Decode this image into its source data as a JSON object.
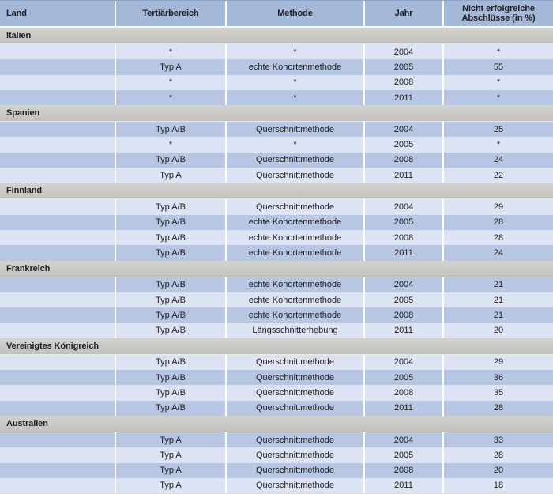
{
  "colors": {
    "header_bg": "#a4b8d8",
    "row_light": "#dce3f2",
    "row_dark": "#b7c6e2",
    "section_bg": "#c8c7c4",
    "grid_line": "#ffffff",
    "text": "#1e1e1e"
  },
  "chart_data": {
    "type": "table",
    "columns": [
      "Land",
      "Tertiärbereich",
      "Methode",
      "Jahr",
      "Nicht erfolgreiche Abschlüsse (in %)"
    ],
    "sections": [
      {
        "country": "Italien",
        "rows": [
          [
            "*",
            "*",
            "2004",
            "*"
          ],
          [
            "Typ A",
            "echte Kohortenmethode",
            "2005",
            "55"
          ],
          [
            "*",
            "*",
            "2008",
            "*"
          ],
          [
            "*",
            "*",
            "2011",
            "*"
          ]
        ]
      },
      {
        "country": "Spanien",
        "rows": [
          [
            "Typ A/B",
            "Querschnittmethode",
            "2004",
            "25"
          ],
          [
            "*",
            "*",
            "2005",
            "*"
          ],
          [
            "Typ A/B",
            "Querschnittmethode",
            "2008",
            "24"
          ],
          [
            "Typ A",
            "Querschnittmethode",
            "2011",
            "22"
          ]
        ]
      },
      {
        "country": "Finnland",
        "rows": [
          [
            "Typ A/B",
            "Querschnittmethode",
            "2004",
            "29"
          ],
          [
            "Typ A/B",
            "echte Kohortenmethode",
            "2005",
            "28"
          ],
          [
            "Typ A/B",
            "echte Kohortenmethode",
            "2008",
            "28"
          ],
          [
            "Typ A/B",
            "echte Kohortenmethode",
            "2011",
            "24"
          ]
        ]
      },
      {
        "country": "Frankreich",
        "rows": [
          [
            "Typ A/B",
            "echte Kohortenmethode",
            "2004",
            "21"
          ],
          [
            "Typ A/B",
            "echte Kohortenmethode",
            "2005",
            "21"
          ],
          [
            "Typ A/B",
            "echte Kohortenmethode",
            "2008",
            "21"
          ],
          [
            "Typ A/B",
            "Längsschnitterhebung",
            "2011",
            "20"
          ]
        ]
      },
      {
        "country": "Vereinigtes Königreich",
        "rows": [
          [
            "Typ A/B",
            "Querschnittmethode",
            "2004",
            "29"
          ],
          [
            "Typ A/B",
            "Querschnittmethode",
            "2005",
            "36"
          ],
          [
            "Typ A/B",
            "Querschnittmethode",
            "2008",
            "35"
          ],
          [
            "Typ A/B",
            "Querschnittmethode",
            "2011",
            "28"
          ]
        ]
      },
      {
        "country": "Australien",
        "rows": [
          [
            "Typ A",
            "Querschnittmethode",
            "2004",
            "33"
          ],
          [
            "Typ A",
            "Querschnittmethode",
            "2005",
            "28"
          ],
          [
            "Typ A",
            "Querschnittmethode",
            "2008",
            "20"
          ],
          [
            "Typ A",
            "Querschnittmethode",
            "2011",
            "18"
          ]
        ]
      }
    ]
  }
}
